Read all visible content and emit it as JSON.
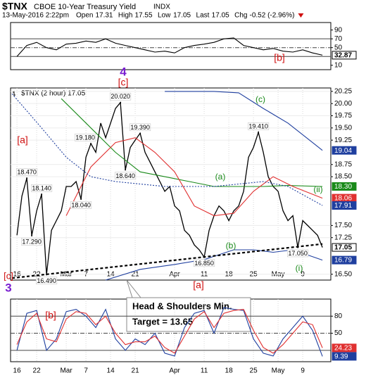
{
  "header": {
    "symbol": "$TNX",
    "name": "CBOE 10-Year Treasury Yield",
    "exchange": "INDX",
    "date": "13-May-2016 2:22pm",
    "stats": [
      {
        "name": "Open",
        "value": 17.31
      },
      {
        "name": "High",
        "value": 17.55
      },
      {
        "name": "Low",
        "value": 17.05
      },
      {
        "name": "Last",
        "value": 17.05
      },
      {
        "name": "Chg",
        "value": "-0.52 (-2.96%)"
      }
    ]
  },
  "callout": {
    "line1": "Head & Shoulders Min.",
    "line2": "Target = 13.65"
  },
  "annotations": [
    {
      "text": "[a]",
      "color": "#d01010"
    },
    {
      "text": "[c]",
      "color": "#d01010"
    },
    {
      "text": "4",
      "color": "#7a1fd0"
    },
    {
      "text": "[b]",
      "color": "#d01010"
    },
    {
      "text": "(c)",
      "color": "#1a8a1a"
    },
    {
      "text": "(a)",
      "color": "#1a8a1a"
    },
    {
      "text": "(b)",
      "color": "#1a8a1a"
    },
    {
      "text": "(ii)",
      "color": "#1a8a1a"
    },
    {
      "text": "(i)",
      "color": "#1a8a1a"
    },
    {
      "text": "[a]",
      "color": "#d01010"
    },
    {
      "text": "[c]",
      "color": "#d01010"
    },
    {
      "text": "3",
      "color": "#7a1fd0"
    },
    {
      "text": "[b]",
      "color": "#d01010"
    }
  ],
  "chart_data": [
    {
      "type": "line",
      "xlim": [
        -1.3,
        63.7
      ],
      "ylim": [
        0,
        107
      ],
      "yticks": [
        10,
        50,
        70,
        90
      ],
      "levels": [
        30,
        50,
        70
      ],
      "series": [
        {
          "color": "#000000",
          "x": [
            0,
            2,
            4,
            6,
            8,
            10,
            12,
            14,
            16,
            18,
            20,
            22,
            24,
            26,
            28,
            30,
            32,
            34,
            36,
            38,
            40,
            42,
            44,
            46,
            48,
            50,
            52,
            54,
            56,
            58,
            60,
            62
          ],
          "values": [
            30,
            55,
            62,
            50,
            45,
            58,
            60,
            65,
            62,
            70,
            60,
            55,
            50,
            45,
            40,
            42,
            38,
            50,
            55,
            58,
            62,
            70,
            72,
            55,
            50,
            45,
            48,
            42,
            40,
            45,
            38,
            32.87
          ]
        }
      ],
      "last_labels": [
        {
          "value": 32.87,
          "color": "#000000"
        }
      ]
    },
    {
      "type": "line",
      "xlim": [
        -1.3,
        63.7
      ],
      "ylim": [
        16.38,
        20.32
      ],
      "yticks": [
        {
          "value": 16.5,
          "label": "16.50"
        },
        {
          "value": 17.25,
          "label": "17.25"
        },
        {
          "value": 17.5,
          "label": "17.50"
        },
        {
          "value": 18.5,
          "label": "18.50"
        },
        {
          "value": 18.75,
          "label": "18.75"
        },
        {
          "value": 19.25,
          "label": "19.25"
        },
        {
          "value": 19.5,
          "label": "19.50"
        },
        {
          "value": 19.75,
          "label": "19.75"
        },
        {
          "value": 20,
          "label": "20.00"
        },
        {
          "value": 20.25,
          "label": "20.25"
        }
      ],
      "xticks": [
        {
          "value": 0,
          "label": "16"
        },
        {
          "value": 4,
          "label": "22"
        },
        {
          "value": 10,
          "label": "Mar"
        },
        {
          "value": 14,
          "label": "7"
        },
        {
          "value": 19,
          "label": "14"
        },
        {
          "value": 24,
          "label": "21"
        },
        {
          "value": 32,
          "label": "Apr"
        },
        {
          "value": 38,
          "label": "11"
        },
        {
          "value": 43,
          "label": "18"
        },
        {
          "value": 48,
          "label": "25"
        },
        {
          "value": 53,
          "label": "May"
        },
        {
          "value": 58,
          "label": "9"
        }
      ],
      "series": [
        {
          "name": "$TNX (2 hour) 17.05",
          "color": "#000000",
          "x": [
            0,
            1,
            2,
            3,
            4,
            5,
            6,
            7,
            8,
            9,
            10,
            11,
            12,
            13,
            14,
            15,
            16,
            17,
            18,
            19,
            20,
            21,
            22,
            23,
            24,
            25,
            26,
            27,
            28,
            29,
            30,
            31,
            32,
            33,
            34,
            35,
            36,
            37,
            38,
            39,
            40,
            41,
            42,
            43,
            44,
            45,
            46,
            47,
            48,
            49,
            50,
            51,
            52,
            53,
            54,
            55,
            56,
            57,
            58,
            59,
            60,
            61,
            62
          ],
          "values": [
            17.3,
            18.1,
            18.47,
            17.29,
            17.8,
            18.14,
            16.49,
            17.4,
            17.6,
            17.8,
            18.3,
            18.3,
            18.4,
            18.04,
            18.9,
            19.18,
            19.0,
            19.6,
            19.3,
            19.6,
            19.9,
            20.02,
            18.64,
            19.1,
            19.25,
            19.39,
            19.0,
            18.8,
            18.6,
            18.4,
            18.2,
            18.3,
            17.9,
            17.8,
            17.4,
            17.3,
            17.1,
            17.0,
            16.85,
            17.4,
            17.7,
            17.9,
            17.8,
            17.6,
            17.8,
            17.9,
            18.2,
            18.9,
            19.1,
            19.41,
            19.0,
            18.5,
            18.3,
            18.2,
            17.8,
            17.6,
            17.7,
            17.05,
            17.6,
            17.5,
            17.4,
            17.3,
            17.05
          ]
        },
        {
          "color": "#1a8a1a",
          "x": [
            9,
            15,
            20,
            25,
            30,
            35,
            40,
            45,
            50,
            55,
            62
          ],
          "values": [
            20.1,
            19.5,
            19.0,
            18.6,
            18.5,
            18.4,
            18.3,
            18.3,
            18.3,
            18.32,
            18.3
          ]
        },
        {
          "color": "#e03030",
          "x": [
            10,
            15,
            20,
            24,
            28,
            32,
            36,
            40,
            44,
            48,
            52,
            56,
            62
          ],
          "values": [
            17.7,
            18.7,
            19.2,
            19.3,
            19.0,
            18.6,
            17.9,
            17.7,
            17.75,
            18.2,
            18.5,
            18.3,
            18.06
          ]
        },
        {
          "color": "#1f3f9f",
          "x": [
            30,
            40,
            45,
            50,
            55,
            60,
            62
          ],
          "values": [
            20.25,
            20.25,
            20.22,
            19.9,
            19.6,
            19.2,
            19.04
          ]
        },
        {
          "color": "#1f3f9f",
          "x": [
            18,
            25,
            32,
            38,
            44,
            48,
            52,
            56,
            62
          ],
          "values": [
            16.38,
            16.6,
            16.7,
            16.8,
            17.0,
            17.0,
            16.95,
            17.0,
            16.79
          ]
        },
        {
          "color": "#1f3f9f",
          "dash": "2,2",
          "x": [
            -1,
            5,
            10,
            15,
            20,
            30,
            40,
            50,
            55,
            62
          ],
          "values": [
            20.2,
            19.5,
            18.9,
            18.5,
            18.4,
            18.3,
            18.3,
            18.4,
            18.3,
            17.91
          ]
        },
        {
          "color": "#000000",
          "dash": "4,3",
          "x": [
            -1,
            62
          ],
          "values": [
            16.42,
            17.12
          ]
        }
      ],
      "price_labels": [
        {
          "label": "18.470",
          "value": 18.47,
          "x": 2
        },
        {
          "label": "18.140",
          "value": 18.14,
          "x": 5
        },
        {
          "label": "17.290",
          "value": 17.29,
          "x": 3
        },
        {
          "label": "16.490",
          "value": 16.49,
          "x": 6
        },
        {
          "label": "18.040",
          "value": 18.04,
          "x": 13
        },
        {
          "label": "19.180",
          "value": 19.18,
          "x": 15
        },
        {
          "label": "20.020",
          "value": 20.02,
          "x": 21
        },
        {
          "label": "19.390",
          "value": 19.39,
          "x": 25
        },
        {
          "label": "18.640",
          "value": 18.64,
          "x": 22
        },
        {
          "label": "16.850",
          "value": 16.85,
          "x": 38
        },
        {
          "label": "19.410",
          "value": 19.41,
          "x": 49
        },
        {
          "label": "17.050",
          "value": 17.05,
          "x": 57
        }
      ],
      "last_labels": [
        {
          "value": 19.04,
          "color": "#1f3f9f"
        },
        {
          "value": 18.3,
          "label": "18.30",
          "color": "#1a8a1a"
        },
        {
          "value": 18.06,
          "color": "#e03030"
        },
        {
          "value": 17.91,
          "color": "#1f3f9f"
        },
        {
          "value": 17.05,
          "color": "#000000"
        },
        {
          "value": 16.79,
          "color": "#1f3f9f"
        }
      ]
    },
    {
      "type": "line",
      "xlim": [
        -1.3,
        63.7
      ],
      "ylim": [
        0,
        110
      ],
      "yticks": [
        50,
        80
      ],
      "levels": [
        20,
        50,
        80
      ],
      "xticks": [
        {
          "value": 0,
          "label": "16"
        },
        {
          "value": 4,
          "label": "22"
        },
        {
          "value": 10,
          "label": "Mar"
        },
        {
          "value": 14,
          "label": "7"
        },
        {
          "value": 19,
          "label": "14"
        },
        {
          "value": 24,
          "label": "21"
        },
        {
          "value": 32,
          "label": "Apr"
        },
        {
          "value": 38,
          "label": "11"
        },
        {
          "value": 43,
          "label": "18"
        },
        {
          "value": 48,
          "label": "25"
        },
        {
          "value": 53,
          "label": "May"
        },
        {
          "value": 58,
          "label": "9"
        }
      ],
      "series": [
        {
          "color": "#1f3f9f",
          "x": [
            0,
            2,
            4,
            6,
            8,
            10,
            12,
            14,
            16,
            18,
            20,
            22,
            24,
            26,
            28,
            30,
            32,
            34,
            36,
            38,
            40,
            42,
            44,
            46,
            48,
            50,
            52,
            54,
            56,
            58,
            60,
            62
          ],
          "values": [
            20,
            85,
            90,
            20,
            40,
            88,
            92,
            80,
            60,
            92,
            40,
            20,
            40,
            30,
            50,
            15,
            10,
            60,
            85,
            90,
            50,
            95,
            92,
            90,
            40,
            15,
            10,
            40,
            60,
            80,
            55,
            9.39
          ]
        },
        {
          "color": "#e03030",
          "x": [
            0,
            2,
            4,
            6,
            8,
            10,
            12,
            14,
            16,
            18,
            20,
            22,
            24,
            26,
            28,
            30,
            32,
            34,
            36,
            38,
            40,
            42,
            44,
            46,
            48,
            50,
            52,
            54,
            56,
            58,
            60,
            62
          ],
          "values": [
            30,
            70,
            85,
            40,
            35,
            75,
            88,
            85,
            65,
            80,
            50,
            30,
            35,
            35,
            45,
            25,
            15,
            45,
            75,
            88,
            60,
            85,
            90,
            92,
            55,
            25,
            15,
            30,
            50,
            70,
            65,
            24.23
          ]
        }
      ],
      "last_labels": [
        {
          "value": 24.23,
          "color": "#e03030"
        },
        {
          "value": 9.39,
          "color": "#1f3f9f"
        }
      ]
    }
  ]
}
